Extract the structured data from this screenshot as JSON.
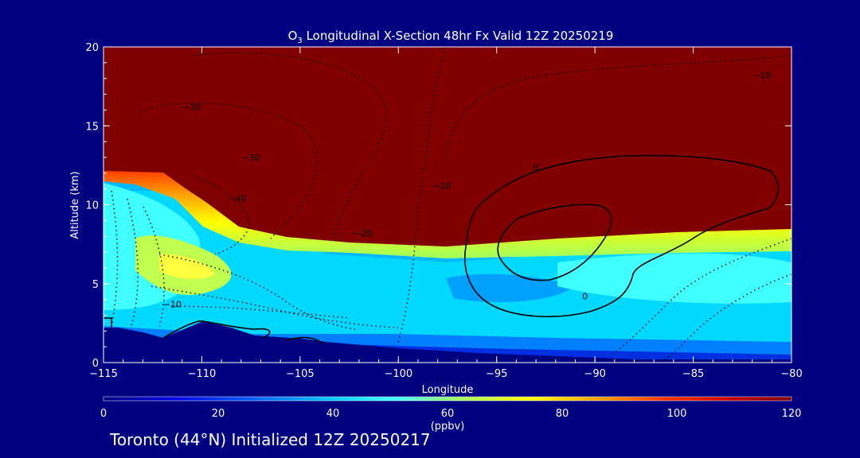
{
  "chart_data": {
    "type": "heatmap",
    "title_main": "O",
    "title_sub": "3",
    "title_rest": " Longitudinal X-Section 48hr  Fx Valid 12Z 20250219",
    "xlabel": "Longitude",
    "ylabel": "Altitude (km)",
    "xlim": [
      -115,
      -80
    ],
    "ylim": [
      0,
      20
    ],
    "x_ticks": [
      -115,
      -110,
      -105,
      -100,
      -95,
      -90,
      -85,
      -80
    ],
    "x_tick_labels": [
      "−115",
      "−110",
      "−105",
      "−100",
      "−95",
      "−90",
      "−85",
      "−80"
    ],
    "y_ticks": [
      0,
      5,
      10,
      15,
      20
    ],
    "y_tick_labels": [
      "0",
      "5",
      "10",
      "15",
      "20"
    ],
    "colorbar": {
      "label": "(ppbv)",
      "range": [
        0,
        120
      ],
      "ticks": [
        0,
        20,
        40,
        60,
        80,
        100,
        120
      ],
      "tick_labels": [
        "0",
        "20",
        "40",
        "60",
        "80",
        "100",
        "120"
      ],
      "colors": [
        "#000080",
        "#0000e0",
        "#0060ff",
        "#00c8ff",
        "#40ffff",
        "#a0ff60",
        "#ffff00",
        "#ffa000",
        "#ff3000",
        "#c00000",
        "#800000"
      ]
    },
    "tropopause_altitude_km": [
      [
        -115,
        11.8
      ],
      [
        -112,
        11.8
      ],
      [
        -110,
        10
      ],
      [
        -108,
        8.8
      ],
      [
        -105,
        8
      ],
      [
        -100,
        7.8
      ],
      [
        -95,
        8
      ],
      [
        -90,
        8.2
      ],
      [
        -85,
        8.3
      ],
      [
        -80,
        8.3
      ]
    ],
    "terrain_altitude_km": [
      [
        -115,
        2.2
      ],
      [
        -112,
        1.6
      ],
      [
        -110,
        2.5
      ],
      [
        -108,
        2.1
      ],
      [
        -106,
        1.5
      ],
      [
        -104,
        1.3
      ],
      [
        -100,
        1
      ],
      [
        -95,
        0.8
      ],
      [
        -90,
        0.6
      ],
      [
        -85,
        0.5
      ],
      [
        -80,
        0.5
      ]
    ],
    "contour_labels": [
      {
        "text": "−10",
        "lon": -81.5,
        "alt": 18
      },
      {
        "text": "−20",
        "lon": -110.5,
        "alt": 16
      },
      {
        "text": "−30",
        "lon": -107.5,
        "alt": 12.8
      },
      {
        "text": "−40",
        "lon": -108.2,
        "alt": 10.2
      },
      {
        "text": "−20",
        "lon": -101.8,
        "alt": 8
      },
      {
        "text": "−10",
        "lon": -97.8,
        "alt": 11
      },
      {
        "text": "−10",
        "lon": -111.5,
        "alt": 3.5
      },
      {
        "text": "0",
        "lon": -93,
        "alt": 12.2
      },
      {
        "text": "0",
        "lon": -90.5,
        "alt": 4
      }
    ]
  },
  "footer": "Toronto (44°N) Initialized 12Z 20250217",
  "colors": {
    "background": "#000080",
    "text": "#ffffff",
    "stratosphere": "#800000"
  }
}
